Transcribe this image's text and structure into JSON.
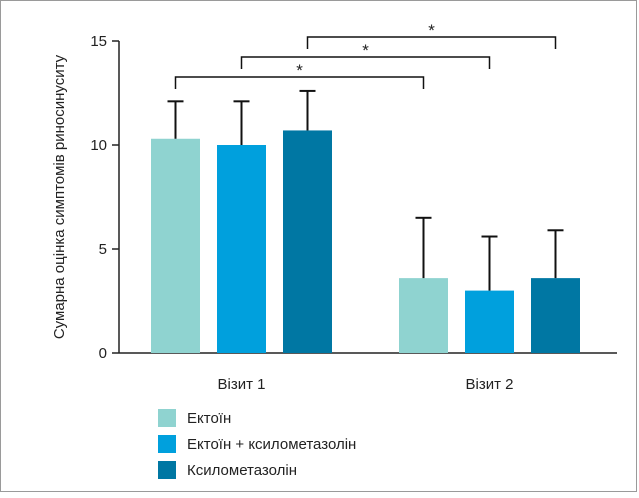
{
  "chart_data": {
    "type": "bar",
    "title": "",
    "xlabel": "",
    "ylabel": "Сумарна оцінка симптомів риносинуситу",
    "ylim": [
      0,
      15
    ],
    "yticks": [
      0,
      5,
      10,
      15
    ],
    "grid": false,
    "legend_position": "bottom-left",
    "categories": [
      "Візит 1",
      "Візит 2"
    ],
    "series": [
      {
        "name": "Ектоїн",
        "color": "#8fd3d0",
        "values": [
          10.3,
          3.6
        ],
        "error": [
          1.8,
          2.9
        ]
      },
      {
        "name": "Ектоїн + ксилометазолін",
        "color": "#00a0dd",
        "values": [
          10.0,
          3.0
        ],
        "error": [
          2.1,
          2.6
        ]
      },
      {
        "name": "Ксилометазолін",
        "color": "#0077a3",
        "values": [
          10.7,
          3.6
        ],
        "error": [
          1.9,
          2.3
        ]
      }
    ],
    "significance": [
      {
        "from_series": 0,
        "from_category": 0,
        "to_series": 0,
        "to_category": 1,
        "label": "*"
      },
      {
        "from_series": 1,
        "from_category": 0,
        "to_series": 1,
        "to_category": 1,
        "label": "*"
      },
      {
        "from_series": 2,
        "from_category": 0,
        "to_series": 2,
        "to_category": 1,
        "label": "*"
      }
    ]
  }
}
